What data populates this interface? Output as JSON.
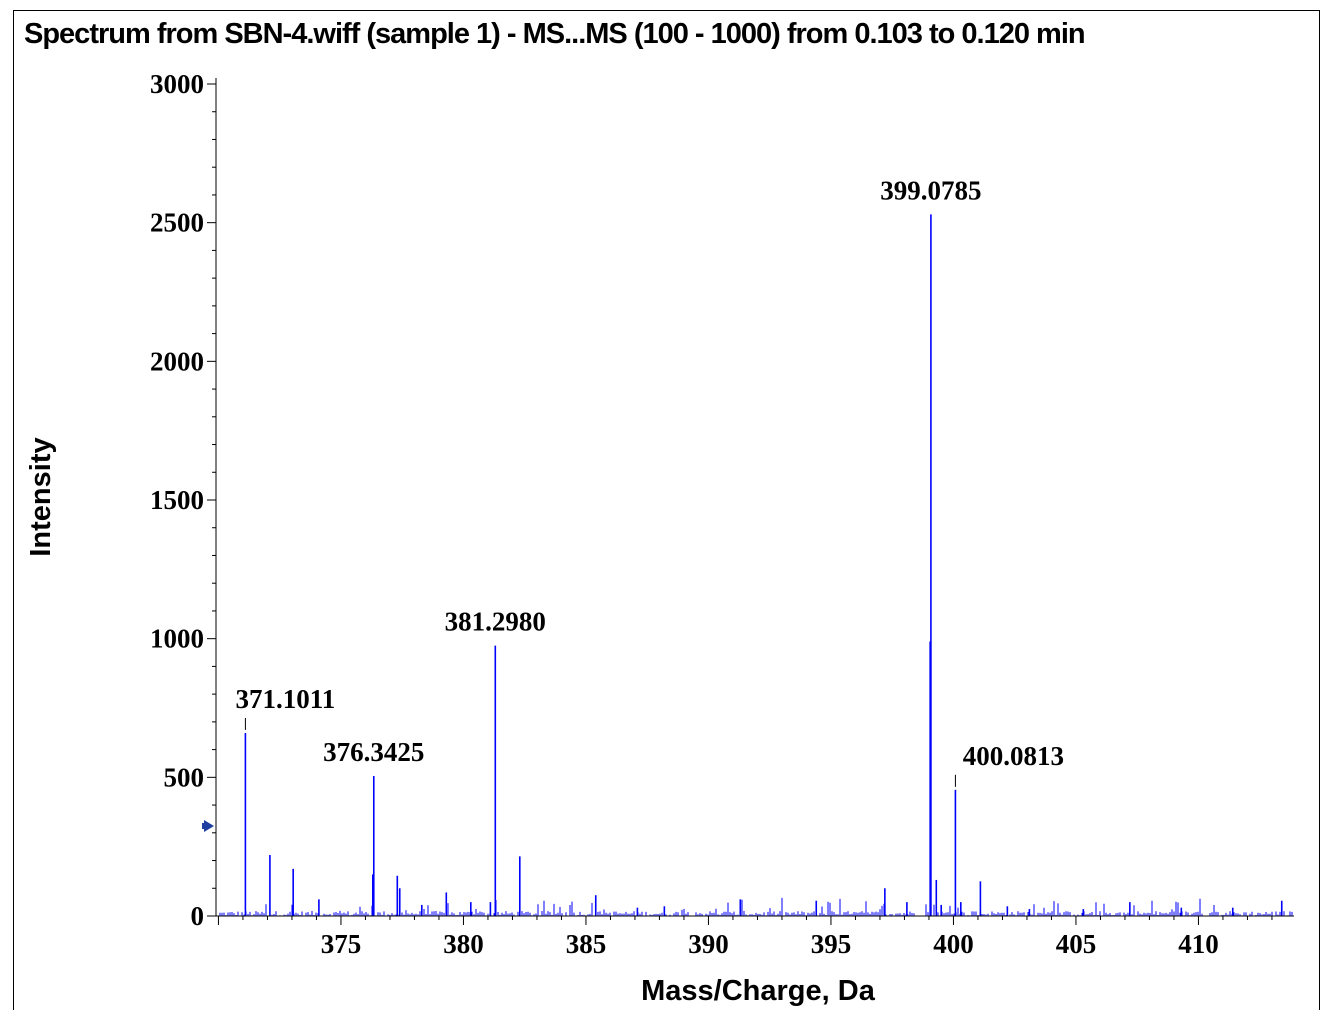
{
  "chart_data": {
    "type": "bar",
    "title": "Spectrum from SBN-4.wiff (sample 1) - MS...MS (100 - 1000) from 0.103 to 0.120 min",
    "xlabel": "Mass/Charge, Da",
    "ylabel": "Intensity",
    "xlim": [
      369.9,
      413.9
    ],
    "ylim": [
      0,
      3000
    ],
    "x_ticks": [
      375,
      380,
      385,
      390,
      395,
      400,
      405,
      410
    ],
    "y_ticks": [
      0,
      500,
      1000,
      1500,
      2000,
      2500,
      3000
    ],
    "line_color": "#0000ff",
    "grid": false,
    "labeled_peaks": [
      {
        "mz": 371.1,
        "intensity": 660,
        "label": "371.1011"
      },
      {
        "mz": 376.34,
        "intensity": 505,
        "label": "376.3425"
      },
      {
        "mz": 381.3,
        "intensity": 975,
        "label": "381.2980"
      },
      {
        "mz": 399.08,
        "intensity": 2530,
        "label": "399.0785"
      },
      {
        "mz": 400.08,
        "intensity": 455,
        "label": "400.0813"
      }
    ],
    "peaks": [
      {
        "mz": 371.1,
        "intensity": 660
      },
      {
        "mz": 372.1,
        "intensity": 220
      },
      {
        "mz": 373.05,
        "intensity": 170
      },
      {
        "mz": 374.1,
        "intensity": 60
      },
      {
        "mz": 376.3,
        "intensity": 150
      },
      {
        "mz": 376.34,
        "intensity": 505
      },
      {
        "mz": 377.3,
        "intensity": 145
      },
      {
        "mz": 377.4,
        "intensity": 100
      },
      {
        "mz": 378.3,
        "intensity": 40
      },
      {
        "mz": 379.3,
        "intensity": 85
      },
      {
        "mz": 380.3,
        "intensity": 50
      },
      {
        "mz": 381.1,
        "intensity": 50
      },
      {
        "mz": 381.3,
        "intensity": 975
      },
      {
        "mz": 382.3,
        "intensity": 215
      },
      {
        "mz": 385.4,
        "intensity": 75
      },
      {
        "mz": 387.1,
        "intensity": 30
      },
      {
        "mz": 388.2,
        "intensity": 35
      },
      {
        "mz": 391.3,
        "intensity": 60
      },
      {
        "mz": 394.4,
        "intensity": 55
      },
      {
        "mz": 397.2,
        "intensity": 100
      },
      {
        "mz": 398.1,
        "intensity": 50
      },
      {
        "mz": 399.05,
        "intensity": 990
      },
      {
        "mz": 399.08,
        "intensity": 2530
      },
      {
        "mz": 399.3,
        "intensity": 130
      },
      {
        "mz": 399.5,
        "intensity": 40
      },
      {
        "mz": 400.08,
        "intensity": 455
      },
      {
        "mz": 400.3,
        "intensity": 50
      },
      {
        "mz": 401.1,
        "intensity": 125
      },
      {
        "mz": 402.2,
        "intensity": 35
      },
      {
        "mz": 403.1,
        "intensity": 25
      },
      {
        "mz": 405.3,
        "intensity": 25
      },
      {
        "mz": 407.2,
        "intensity": 50
      },
      {
        "mz": 409.3,
        "intensity": 30
      },
      {
        "mz": 411.4,
        "intensity": 30
      },
      {
        "mz": 413.4,
        "intensity": 55
      }
    ]
  }
}
